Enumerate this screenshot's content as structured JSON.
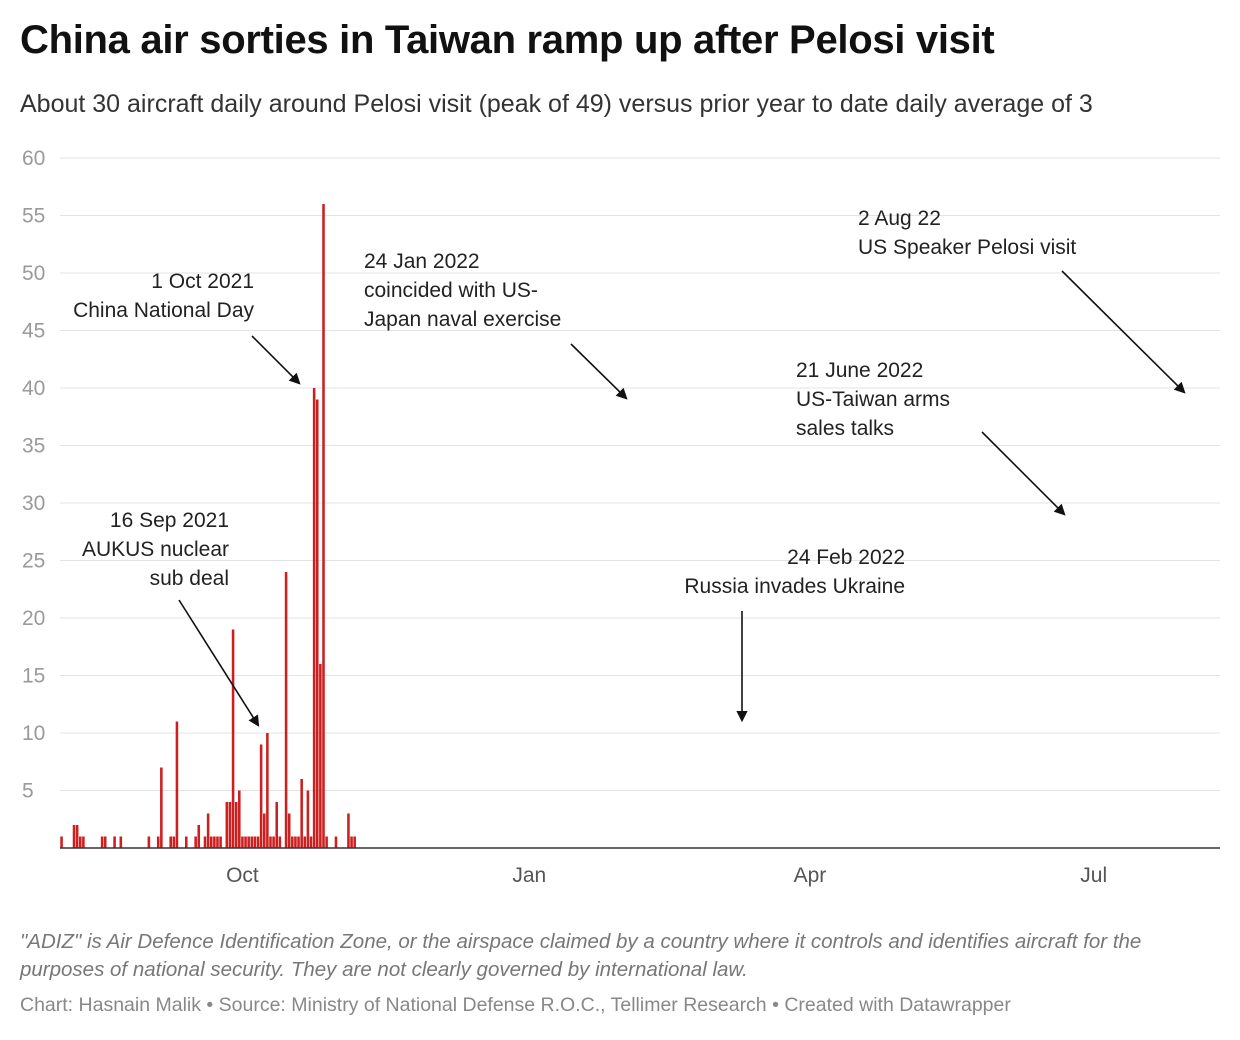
{
  "title": "China air sorties in Taiwan ramp up after Pelosi visit",
  "subtitle": "About 30 aircraft daily around Pelosi visit (peak of 49) versus prior year to date daily average of 3",
  "notes": "\"ADIZ\" is Air Defence Identification Zone, or the airspace claimed by a country where it controls and identifies aircraft for the purposes of national security. They are not clearly governed by international law.",
  "footer": "Chart: Hasnain Malik • Source: Ministry of National Defense R.O.C., Tellimer Research • Created with Datawrapper",
  "colors": {
    "bar": "#cc1f1f",
    "grid": "#e3e3e3",
    "axis": "#333333",
    "tick_text": "#9a9a9a"
  },
  "chart_data": {
    "type": "bar",
    "x_axis": "date",
    "date_range": [
      "2021-08-04",
      "2022-08-10"
    ],
    "ylim": [
      0,
      60
    ],
    "y_ticks": [
      5,
      10,
      15,
      20,
      25,
      30,
      35,
      40,
      45,
      50,
      55,
      60
    ],
    "x_ticks": [
      {
        "label": "Oct",
        "date": "2021-10-01"
      },
      {
        "label": "Jan",
        "date": "2022-01-01"
      },
      {
        "label": "Apr",
        "date": "2022-04-01"
      },
      {
        "label": "Jul",
        "date": "2022-07-01"
      }
    ],
    "grid": true,
    "series": [
      {
        "points": [
          [
            "2021-08-04",
            1
          ],
          [
            "2021-08-08",
            2
          ],
          [
            "2021-08-09",
            2
          ],
          [
            "2021-08-10",
            1
          ],
          [
            "2021-08-11",
            1
          ],
          [
            "2021-08-17",
            1
          ],
          [
            "2021-08-18",
            1
          ],
          [
            "2021-08-21",
            1
          ],
          [
            "2021-08-23",
            1
          ],
          [
            "2021-09-01",
            1
          ],
          [
            "2021-09-04",
            1
          ],
          [
            "2021-09-05",
            7
          ],
          [
            "2021-09-08",
            1
          ],
          [
            "2021-09-09",
            1
          ],
          [
            "2021-09-10",
            11
          ],
          [
            "2021-09-13",
            1
          ],
          [
            "2021-09-16",
            1
          ],
          [
            "2021-09-17",
            2
          ],
          [
            "2021-09-19",
            1
          ],
          [
            "2021-09-20",
            3
          ],
          [
            "2021-09-21",
            1
          ],
          [
            "2021-09-22",
            1
          ],
          [
            "2021-09-23",
            1
          ],
          [
            "2021-09-24",
            1
          ],
          [
            "2021-09-26",
            4
          ],
          [
            "2021-09-27",
            4
          ],
          [
            "2021-09-28",
            19
          ],
          [
            "2021-09-29",
            4
          ],
          [
            "2021-09-30",
            5
          ],
          [
            "2021-10-01",
            1
          ],
          [
            "2021-10-02",
            1
          ],
          [
            "2021-10-03",
            1
          ],
          [
            "2021-10-04",
            1
          ],
          [
            "2021-10-05",
            1
          ],
          [
            "2021-10-06",
            1
          ],
          [
            "2021-10-07",
            9
          ],
          [
            "2021-10-08",
            3
          ],
          [
            "2021-10-09",
            10
          ],
          [
            "2021-10-10",
            1
          ],
          [
            "2021-10-11",
            1
          ],
          [
            "2021-10-12",
            4
          ],
          [
            "2021-10-13",
            1
          ],
          [
            "2021-10-15",
            24
          ],
          [
            "2021-10-16",
            3
          ],
          [
            "2021-10-17",
            1
          ],
          [
            "2021-10-18",
            1
          ],
          [
            "2021-10-19",
            1
          ],
          [
            "2021-10-20",
            6
          ],
          [
            "2021-10-21",
            1
          ],
          [
            "2021-10-22",
            5
          ],
          [
            "2021-10-23",
            1
          ],
          [
            "2021-10-24",
            40
          ],
          [
            "2021-10-25",
            39
          ],
          [
            "2021-10-26",
            16
          ],
          [
            "2021-10-27",
            56
          ],
          [
            "2021-10-28",
            1
          ],
          [
            "2021-10-31",
            1
          ],
          [
            "2021-11-04",
            3
          ],
          [
            "2021-11-05",
            1
          ],
          [
            "2021-11-06",
            1
          ]
        ]
      }
    ],
    "annotations": [
      {
        "lines": [
          "1 Oct 2021",
          "China National Day"
        ],
        "date": "2021-10-01"
      },
      {
        "lines": [
          "16 Sep 2021",
          "AUKUS nuclear",
          "sub deal"
        ],
        "date": "2021-09-16"
      },
      {
        "lines": [
          "24 Jan 2022",
          "coincided with US-",
          "Japan naval exercise"
        ],
        "date": "2022-01-24"
      },
      {
        "lines": [
          "24 Feb 2022",
          "Russia invades Ukraine"
        ],
        "date": "2022-02-24"
      },
      {
        "lines": [
          "21 June 2022",
          "US-Taiwan arms",
          "sales talks"
        ],
        "date": "2022-06-21"
      },
      {
        "lines": [
          "2 Aug 22",
          "US Speaker Pelosi visit"
        ],
        "date": "2022-08-02"
      }
    ]
  }
}
